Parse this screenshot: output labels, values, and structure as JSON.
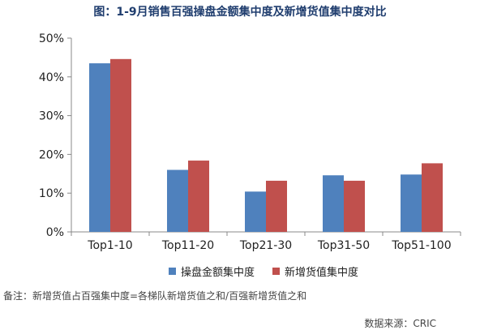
{
  "title": "图：1-9月销售百强操盘金额集中度及新增货值集中度对比",
  "note": "备注：新增货值占百强集中度=各梯队新增货值之和/百强新增货值之和",
  "source": "数据来源：CRIC",
  "colors": {
    "series1": "#4f81bd",
    "series2": "#c0504d",
    "axis": "#888888",
    "grid": "#bbbbbb"
  },
  "chart_data": {
    "type": "bar",
    "title": "图：1-9月销售百强操盘金额集中度及新增货值集中度对比",
    "categories": [
      "Top1-10",
      "Top11-20",
      "Top21-30",
      "Top31-50",
      "Top51-100"
    ],
    "series": [
      {
        "name": "操盘金额集中度",
        "values": [
          43.5,
          16.0,
          10.4,
          14.6,
          14.8
        ]
      },
      {
        "name": "新增货值集中度",
        "values": [
          44.6,
          18.4,
          13.2,
          13.2,
          17.7
        ]
      }
    ],
    "yticks": [
      "0%",
      "10%",
      "20%",
      "30%",
      "40%",
      "50%"
    ],
    "ylim": [
      0,
      50
    ],
    "grid": false,
    "legend": "bottom"
  }
}
